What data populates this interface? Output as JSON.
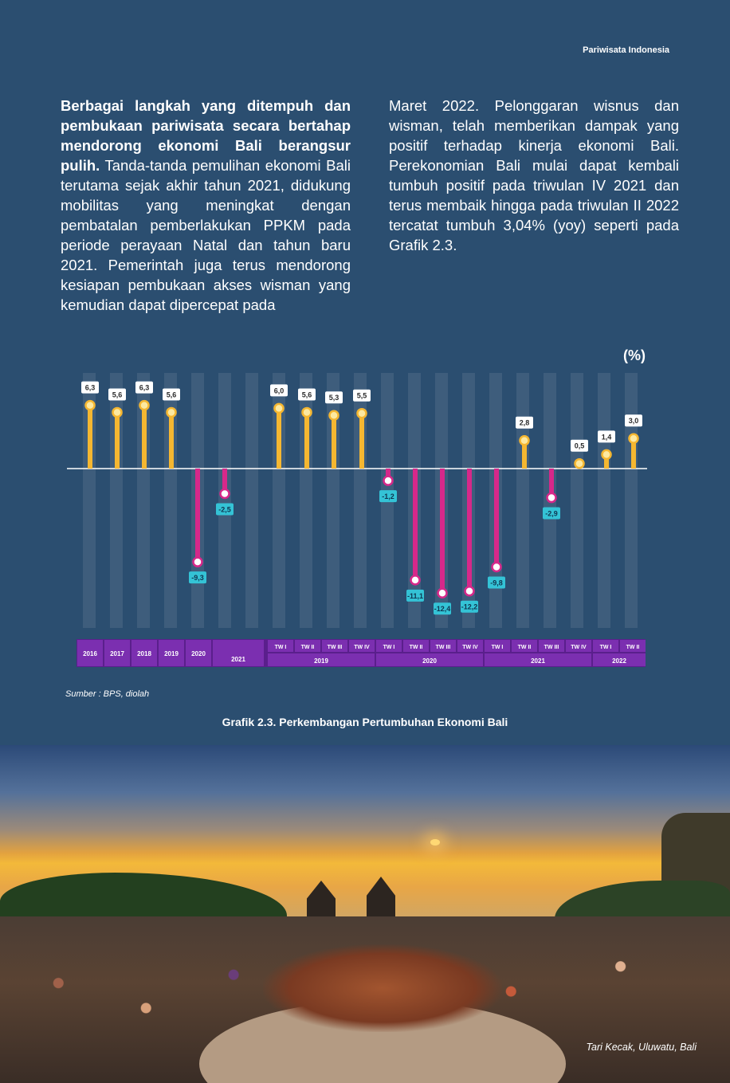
{
  "header": {
    "title": "Pariwisata Indonesia"
  },
  "body": {
    "left_bold": "Berbagai langkah yang ditempuh dan pembukaan pariwisata secara bertahap mendorong ekonomi Bali berangsur pulih.",
    "left_text": " Tanda-tanda pemulihan ekonomi Bali terutama sejak akhir tahun 2021, didukung mobilitas yang meningkat dengan pembatalan pemberlakukan PPKM pada periode perayaan Natal dan tahun baru 2021. Pemerintah juga terus mendorong kesiapan pembukaan akses wisman yang kemudian dapat dipercepat pada",
    "right_text": "Maret 2022. Pelonggaran wisnus dan wisman, telah memberikan dampak yang positif terhadap kinerja ekonomi Bali. Perekonomian Bali mulai dapat kembali tumbuh positif pada triwulan IV 2021 dan terus membaik hingga pada triwulan II 2022 tercatat tumbuh 3,04% (yoy) seperti pada Grafik 2.3."
  },
  "chart_data": {
    "type": "bar",
    "unit_label": "(%)",
    "ylim": [
      -13,
      7
    ],
    "categories": [
      "2016",
      "2017",
      "2018",
      "2019",
      "2020",
      "2021",
      "TW I 2019",
      "TW II 2019",
      "TW III 2019",
      "TW IV 2019",
      "TW I 2020",
      "TW II 2020",
      "TW III 2020",
      "TW IV 2020",
      "TW I 2021",
      "TW II 2021",
      "TW III 2021",
      "TW IV 2021",
      "TW I 2022",
      "TW II 2022"
    ],
    "values": [
      6.3,
      5.6,
      6.3,
      5.6,
      -9.3,
      -2.5,
      6.0,
      5.6,
      5.3,
      5.5,
      -1.2,
      -11.1,
      -12.4,
      -12.2,
      -9.8,
      2.8,
      -2.9,
      0.5,
      1.4,
      3.0
    ],
    "value_labels": [
      "6,3",
      "5,6",
      "6,3",
      "5,6",
      "-9,3",
      "-2,5",
      "6,0",
      "5,6",
      "5,3",
      "5,5",
      "-1,2",
      "-11,1",
      "-12,4",
      "-12,2",
      "-9,8",
      "2,8",
      "-2,9",
      "0,5",
      "1,4",
      "3,0"
    ],
    "annual_labels": [
      "2016",
      "2017",
      "2018",
      "2019",
      "2020",
      "2021"
    ],
    "quarter_labels": [
      "TW I",
      "TW II",
      "TW III",
      "TW IV",
      "TW I",
      "TW II",
      "TW III",
      "TW IV",
      "TW I",
      "TW II",
      "TW III",
      "TW IV",
      "TW I",
      "TW II"
    ],
    "year_groups": [
      {
        "label": "2019",
        "count": 4
      },
      {
        "label": "2020",
        "count": 4
      },
      {
        "label": "2021",
        "count": 4
      },
      {
        "label": "2022",
        "count": 2
      }
    ],
    "colors": {
      "positive": "#f5b731",
      "negative": "#d6288a",
      "label_negative_bg": "#34c3d6",
      "axis_band": "#7b2fb0"
    }
  },
  "source": "Sumber : BPS, diolah",
  "caption": "Grafik 2.3. Perkembangan Pertumbuhan Ekonomi Bali",
  "photo": {
    "caption": "Tari Kecak, Uluwatu, Bali"
  }
}
